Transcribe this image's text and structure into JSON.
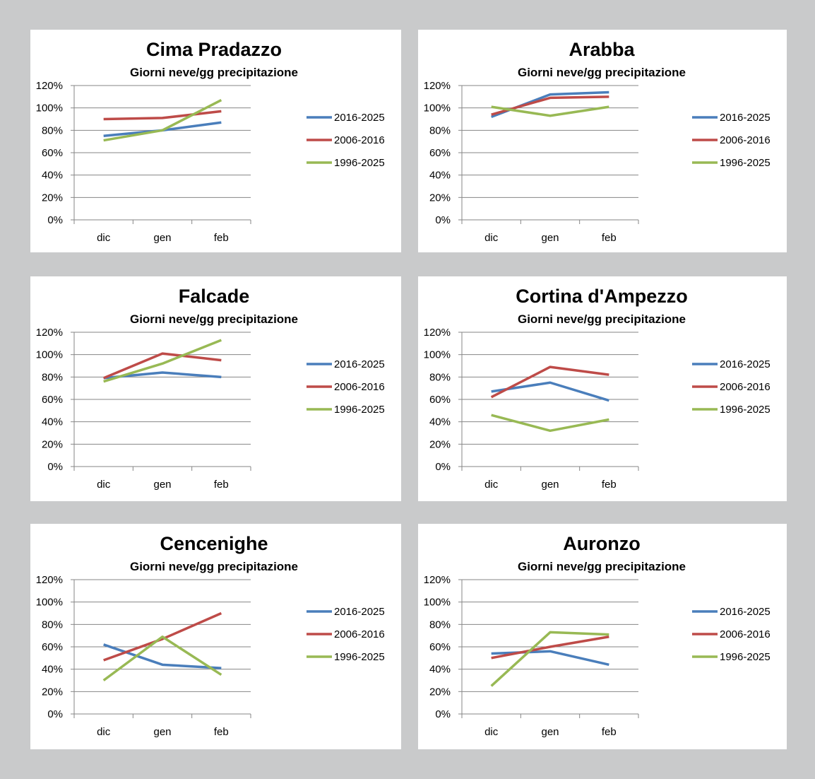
{
  "chart_data": [
    {
      "type": "line",
      "title": "Cima Pradazzo",
      "subtitle": "Giorni neve/gg precipitazione",
      "categories": [
        "dic",
        "gen",
        "feb"
      ],
      "yticks": [
        "0%",
        "20%",
        "40%",
        "60%",
        "80%",
        "100%",
        "120%"
      ],
      "ylim": [
        0,
        120
      ],
      "series": [
        {
          "name": "2016-2025",
          "color": "#4a7ebb",
          "values": [
            75,
            80,
            87
          ]
        },
        {
          "name": "2006-2016",
          "color": "#be4b48",
          "values": [
            90,
            91,
            97
          ]
        },
        {
          "name": "1996-2025",
          "color": "#98b954",
          "values": [
            71,
            80,
            107
          ]
        }
      ]
    },
    {
      "type": "line",
      "title": "Arabba",
      "subtitle": "Giorni neve/gg precipitazione",
      "categories": [
        "dic",
        "gen",
        "feb"
      ],
      "yticks": [
        "0%",
        "20%",
        "40%",
        "60%",
        "80%",
        "100%",
        "120%"
      ],
      "ylim": [
        0,
        120
      ],
      "series": [
        {
          "name": "2016-2025",
          "color": "#4a7ebb",
          "values": [
            92,
            112,
            114
          ]
        },
        {
          "name": "2006-2016",
          "color": "#be4b48",
          "values": [
            94,
            109,
            110
          ]
        },
        {
          "name": "1996-2025",
          "color": "#98b954",
          "values": [
            101,
            93,
            101
          ]
        }
      ]
    },
    {
      "type": "line",
      "title": "Falcade",
      "subtitle": "Giorni neve/gg precipitazione",
      "categories": [
        "dic",
        "gen",
        "feb"
      ],
      "yticks": [
        "0%",
        "20%",
        "40%",
        "60%",
        "80%",
        "100%",
        "120%"
      ],
      "ylim": [
        0,
        120
      ],
      "series": [
        {
          "name": "2016-2025",
          "color": "#4a7ebb",
          "values": [
            79,
            84,
            80
          ]
        },
        {
          "name": "2006-2016",
          "color": "#be4b48",
          "values": [
            79,
            101,
            95
          ]
        },
        {
          "name": "1996-2025",
          "color": "#98b954",
          "values": [
            76,
            92,
            113
          ]
        }
      ]
    },
    {
      "type": "line",
      "title": "Cortina d'Ampezzo",
      "subtitle": "Giorni neve/gg precipitazione",
      "categories": [
        "dic",
        "gen",
        "feb"
      ],
      "yticks": [
        "0%",
        "20%",
        "40%",
        "60%",
        "80%",
        "100%",
        "120%"
      ],
      "ylim": [
        0,
        120
      ],
      "series": [
        {
          "name": "2016-2025",
          "color": "#4a7ebb",
          "values": [
            67,
            75,
            59
          ]
        },
        {
          "name": "2006-2016",
          "color": "#be4b48",
          "values": [
            62,
            89,
            82
          ]
        },
        {
          "name": "1996-2025",
          "color": "#98b954",
          "values": [
            46,
            32,
            42
          ]
        }
      ]
    },
    {
      "type": "line",
      "title": "Cencenighe",
      "subtitle": "Giorni neve/gg precipitazione",
      "categories": [
        "dic",
        "gen",
        "feb"
      ],
      "yticks": [
        "0%",
        "20%",
        "40%",
        "60%",
        "80%",
        "100%",
        "120%"
      ],
      "ylim": [
        0,
        120
      ],
      "series": [
        {
          "name": "2016-2025",
          "color": "#4a7ebb",
          "values": [
            62,
            44,
            41
          ]
        },
        {
          "name": "2006-2016",
          "color": "#be4b48",
          "values": [
            48,
            67,
            90
          ]
        },
        {
          "name": "1996-2025",
          "color": "#98b954",
          "values": [
            30,
            69,
            35
          ]
        }
      ]
    },
    {
      "type": "line",
      "title": "Auronzo",
      "subtitle": "Giorni neve/gg precipitazione",
      "categories": [
        "dic",
        "gen",
        "feb"
      ],
      "yticks": [
        "0%",
        "20%",
        "40%",
        "60%",
        "80%",
        "100%",
        "120%"
      ],
      "ylim": [
        0,
        120
      ],
      "series": [
        {
          "name": "2016-2025",
          "color": "#4a7ebb",
          "values": [
            54,
            56,
            44
          ]
        },
        {
          "name": "2006-2016",
          "color": "#be4b48",
          "values": [
            50,
            60,
            69
          ]
        },
        {
          "name": "1996-2025",
          "color": "#98b954",
          "values": [
            25,
            73,
            71
          ]
        }
      ]
    }
  ]
}
